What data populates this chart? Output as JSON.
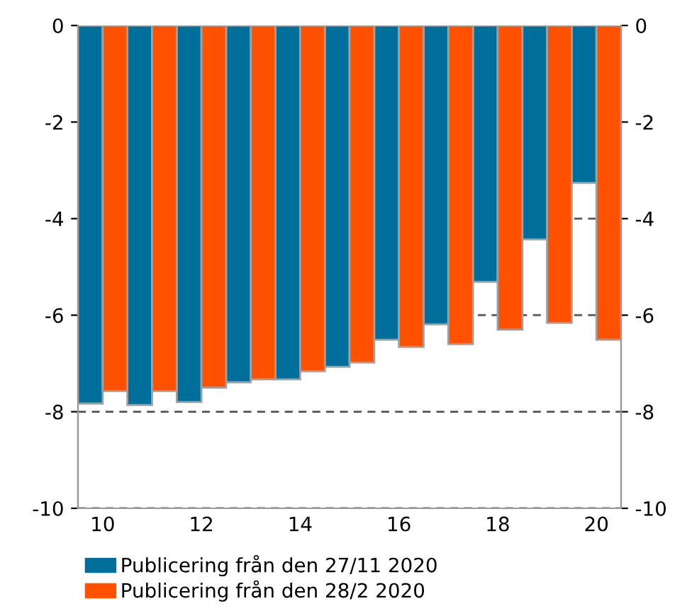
{
  "chart_data": {
    "type": "bar",
    "categories": [
      "10",
      null,
      "12",
      null,
      "14",
      null,
      "16",
      null,
      "18",
      null,
      "20"
    ],
    "series": [
      {
        "name": "Publicering från den 27/11 2020",
        "color": "#006e9a",
        "values": [
          -7.83,
          -7.86,
          -7.8,
          -7.39,
          -7.33,
          -7.07,
          -6.51,
          -6.19,
          -5.31,
          -4.43,
          -3.26
        ]
      },
      {
        "name": "Publicering från den 28/2 2020",
        "color": "#ff5100",
        "values": [
          -7.57,
          -7.57,
          -7.5,
          -7.33,
          -7.16,
          -6.98,
          -6.66,
          -6.6,
          -6.3,
          -6.16,
          -6.51
        ]
      }
    ],
    "ylim": [
      -10,
      0
    ],
    "yticks": [
      -10,
      -8,
      -6,
      -4,
      -2,
      0
    ],
    "y2lim": [
      -10,
      0
    ],
    "y2ticks": [
      -10,
      -8,
      -6,
      -4,
      -2,
      0
    ],
    "grid": "y",
    "legend": "bottom"
  }
}
